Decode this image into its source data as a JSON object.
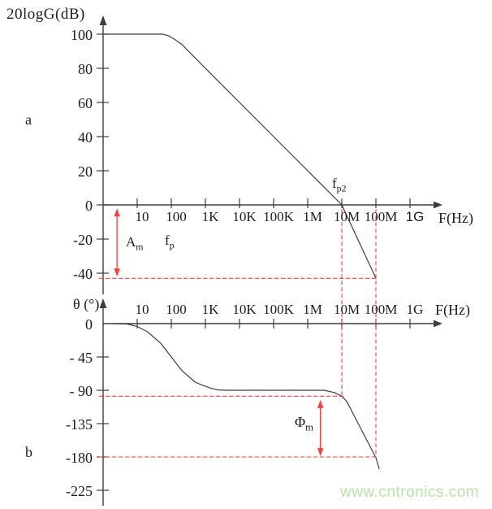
{
  "figure": {
    "label_a": "a",
    "label_b": "b",
    "watermark": "www.cntronics.com",
    "watermark_color": "#b9e3a8",
    "axis_color": "#3d3d3d",
    "curve_color": "#3d3d3d",
    "annotation_color": "#fa3e3e",
    "text_color": "#1c1c1c"
  },
  "chart_data": [
    {
      "id": "gain",
      "type": "line",
      "title": "20logG(dB)",
      "xlabel": "F(Hz)",
      "x_scale": "log",
      "xlim": [
        1,
        2000000000
      ],
      "ylim": [
        -50,
        110
      ],
      "grid": false,
      "x_ticks": [
        {
          "f": 10,
          "label": "10"
        },
        {
          "f": 100,
          "label": "100"
        },
        {
          "f": 1000,
          "label": "1K"
        },
        {
          "f": 10000,
          "label": "10K"
        },
        {
          "f": 100000,
          "label": "100K"
        },
        {
          "f": 1000000,
          "label": "1M"
        },
        {
          "f": 10000000,
          "label": "10M"
        },
        {
          "f": 100000000,
          "label": "100M"
        },
        {
          "f": 1000000000,
          "label": "1G",
          "sans": true
        }
      ],
      "y_ticks": [
        {
          "v": 100,
          "label": "100"
        },
        {
          "v": 80,
          "label": "80"
        },
        {
          "v": 60,
          "label": "60"
        },
        {
          "v": 40,
          "label": "40"
        },
        {
          "v": 20,
          "label": "20"
        },
        {
          "v": 0,
          "label": "0"
        },
        {
          "v": -20,
          "label": "-20"
        },
        {
          "v": -40,
          "label": "-40"
        }
      ],
      "series": [
        {
          "name": "open-loop-gain",
          "points": [
            [
              1,
              100
            ],
            [
              55,
              100
            ],
            [
              80,
              99.2
            ],
            [
              120,
              97.2
            ],
            [
              200,
              94.2
            ],
            [
              350,
              89.2
            ],
            [
              1000,
              80
            ],
            [
              10000,
              60
            ],
            [
              100000,
              40
            ],
            [
              1000000,
              20
            ],
            [
              10000000,
              0
            ],
            [
              100000000,
              -43
            ]
          ]
        }
      ]
    },
    {
      "id": "phase",
      "type": "line",
      "title": "θ (°)",
      "xlabel": "F(Hz)",
      "x_scale": "log",
      "xlim": [
        1,
        2000000000
      ],
      "ylim": [
        -230,
        10
      ],
      "grid": false,
      "x_ticks": [
        {
          "f": 10,
          "label": "10"
        },
        {
          "f": 100,
          "label": "100"
        },
        {
          "f": 1000,
          "label": "1K"
        },
        {
          "f": 10000,
          "label": "10K"
        },
        {
          "f": 100000,
          "label": "100K"
        },
        {
          "f": 1000000,
          "label": "1M"
        },
        {
          "f": 10000000,
          "label": "10M"
        },
        {
          "f": 100000000,
          "label": "100M"
        },
        {
          "f": 1000000000,
          "label": "1G"
        }
      ],
      "y_ticks": [
        {
          "v": 0,
          "label": "0"
        },
        {
          "v": -45,
          "label": "- 45"
        },
        {
          "v": -90,
          "label": "- 90"
        },
        {
          "v": -135,
          "label": "-135"
        },
        {
          "v": -180,
          "label": "-180"
        },
        {
          "v": -225,
          "label": "-225"
        }
      ],
      "series": [
        {
          "name": "phase",
          "points": [
            [
              2,
              0
            ],
            [
              5,
              -0.5
            ],
            [
              10,
              -4
            ],
            [
              20,
              -11
            ],
            [
              50,
              -27
            ],
            [
              100,
              -45
            ],
            [
              200,
              -63
            ],
            [
              500,
              -79
            ],
            [
              800,
              -83
            ],
            [
              1500,
              -87.5
            ],
            [
              2500,
              -89.6
            ],
            [
              4000,
              -90
            ],
            [
              3000000,
              -90
            ],
            [
              6000000,
              -93
            ],
            [
              10000000,
              -98
            ],
            [
              14000000,
              -105
            ],
            [
              100000000,
              -181
            ],
            [
              125000000,
              -196
            ]
          ]
        }
      ]
    }
  ],
  "annotations": {
    "fp_label": {
      "main": "f",
      "sub": "p"
    },
    "fp2_label": {
      "main": "f",
      "sub": "p2"
    },
    "am_label": {
      "main": "A",
      "sub": "m"
    },
    "phi_label": {
      "main": "Φ",
      "sub": "m"
    },
    "am_arrow": {
      "freq": 2.55,
      "from_db": -2,
      "to_db": -42
    },
    "phi_arrow": {
      "freq": 2350000,
      "from_deg": -103,
      "to_deg": -179
    },
    "gain_floor_hline": {
      "db": -43,
      "from_freq": 0.76,
      "to_freq": 100000000
    },
    "crossover_vline": {
      "freq": 10000000,
      "from_db": -2.5,
      "to_deg": -98
    },
    "end_vline": {
      "freq": 100000000,
      "from_db": -2.5,
      "to_deg": -181
    },
    "phase_mid_hline": {
      "deg": -98,
      "from_freq": 0.76,
      "to_freq": 11500000
    },
    "phase_180_hline": {
      "deg": -180,
      "from_freq": 0.76,
      "to_freq": 96000000
    }
  }
}
